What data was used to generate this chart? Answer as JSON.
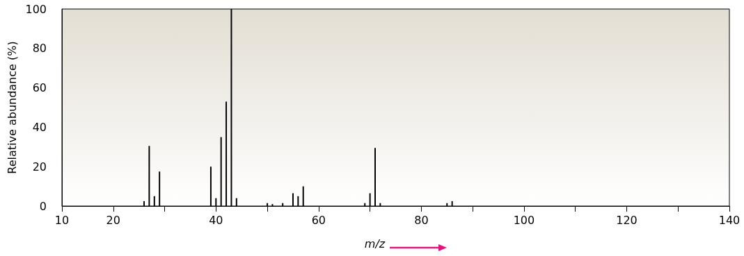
{
  "chart_data": {
    "type": "bar",
    "xlabel": "m/z",
    "ylabel": "Relative abundance (%)",
    "x": [
      26,
      27,
      28,
      29,
      39,
      40,
      41,
      42,
      43,
      44,
      50,
      51,
      53,
      55,
      56,
      57,
      69,
      70,
      71,
      72,
      85,
      86
    ],
    "values": [
      2.5,
      30.5,
      5,
      17.5,
      20,
      4,
      35,
      53,
      100,
      4,
      1.5,
      1,
      1.5,
      6.5,
      5,
      10,
      1.5,
      6.5,
      29.5,
      1.5,
      1.5,
      2.5
    ],
    "color": "#000000",
    "xlim": [
      10,
      140
    ],
    "xticks": [
      10,
      20,
      {
        "value": 30,
        "label": null
      },
      40,
      {
        "value": 50,
        "label": null
      },
      60,
      {
        "value": 70,
        "label": null
      },
      80,
      {
        "value": 90,
        "label": null
      },
      100,
      {
        "value": 110,
        "label": null
      },
      120,
      {
        "value": 130,
        "label": null
      },
      140
    ],
    "ylim": [
      0,
      100
    ],
    "yticks": [
      0,
      20,
      40,
      60,
      80,
      100
    ]
  }
}
